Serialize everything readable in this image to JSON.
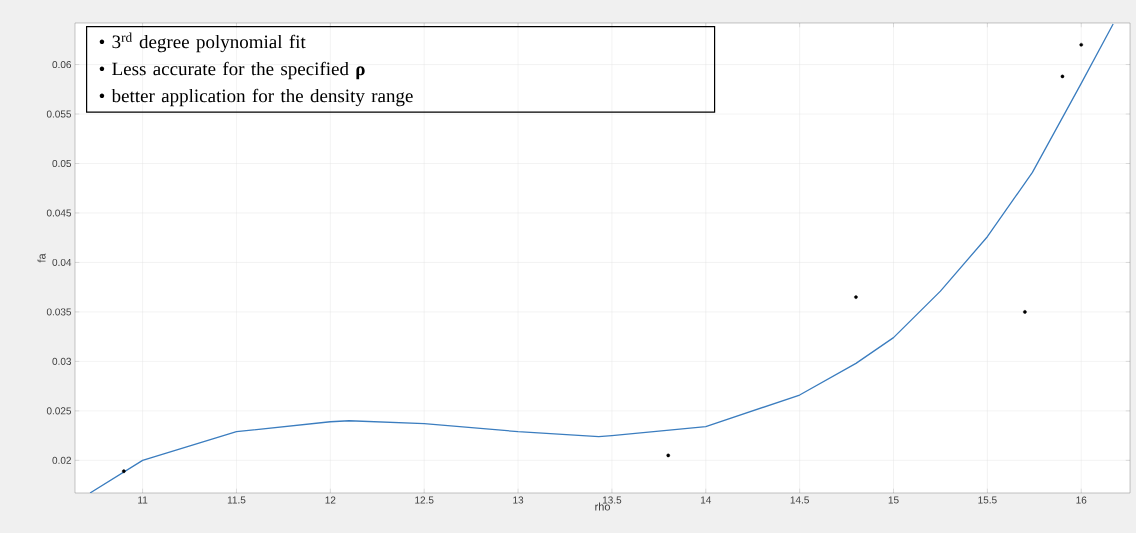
{
  "chart_data": {
    "type": "scatter",
    "xlabel": "rho",
    "ylabel": "fa",
    "grid": true,
    "xlim": [
      10.64,
      16.26
    ],
    "ylim": [
      0.0167,
      0.0642
    ],
    "xticks": [
      11,
      11.5,
      12,
      12.5,
      13,
      13.5,
      14,
      14.5,
      15,
      15.5,
      16
    ],
    "yticks": [
      0.02,
      0.025,
      0.03,
      0.035,
      0.04,
      0.045,
      0.05,
      0.055,
      0.06
    ],
    "series": [
      {
        "color": "#000000",
        "marker": "circle",
        "x": [
          10.9,
          13.8,
          14.8,
          15.7,
          15.9,
          16.0
        ],
        "values": [
          0.0189,
          0.0205,
          0.0365,
          0.035,
          0.0588,
          0.062
        ]
      },
      {
        "type": "line",
        "color": "#3b7dbf",
        "marker": "none",
        "line_style": "solid",
        "x": [
          10.72,
          11.0,
          11.5,
          12.0,
          12.1,
          12.5,
          13.0,
          13.43,
          13.5,
          14.0,
          14.5,
          14.8,
          15.0,
          15.25,
          15.5,
          15.74,
          16.0,
          16.17
        ],
        "values": [
          0.0167,
          0.02,
          0.0229,
          0.0239,
          0.024,
          0.0237,
          0.0229,
          0.0224,
          0.0225,
          0.0234,
          0.0266,
          0.0298,
          0.0324,
          0.0371,
          0.0426,
          0.0491,
          0.0581,
          0.0641
        ]
      }
    ],
    "annotations": [
      "• 3$^{rd}$ degree polynomial fit",
      "• Less accurate for the specified **ρ**",
      "• better application for the density range"
    ]
  }
}
